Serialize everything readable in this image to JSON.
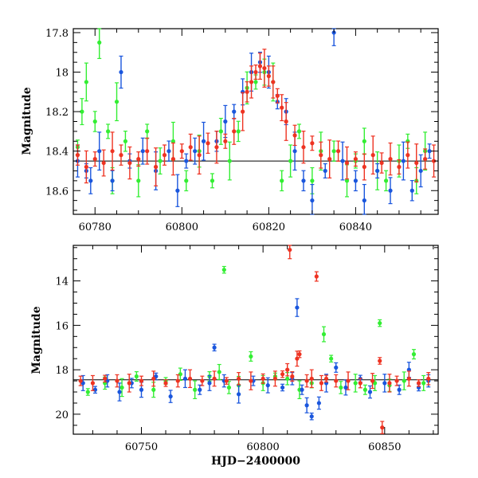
{
  "chart_data": [
    {
      "type": "scatter",
      "title": "",
      "xlabel": "",
      "ylabel": "Magnitude",
      "xlim": [
        60775,
        60859
      ],
      "ylim": [
        18.72,
        17.78
      ],
      "y_inverted": true,
      "grid": false,
      "xticks": [
        60780,
        60800,
        60820,
        60840
      ],
      "yticks": [
        17.8,
        18,
        18.2,
        18.4,
        18.6
      ],
      "ytick_labels": [
        "17.8",
        "18",
        "18.2",
        "18.4",
        "18.6"
      ],
      "reference_line_y": 18.45,
      "series": [
        {
          "color": "#33ee33",
          "values": [
            [
              60776,
              18.38
            ],
            [
              60777,
              18.2
            ],
            [
              60778,
              18.05
            ],
            [
              60780,
              18.25
            ],
            [
              60781,
              17.85
            ],
            [
              60783,
              18.3
            ],
            [
              60784,
              18.55
            ],
            [
              60785,
              18.15
            ],
            [
              60787,
              18.35
            ],
            [
              60790,
              18.55
            ],
            [
              60792,
              18.3
            ],
            [
              60795,
              18.45
            ],
            [
              60798,
              18.35
            ],
            [
              60801,
              18.55
            ],
            [
              60804,
              18.4
            ],
            [
              60807,
              18.55
            ],
            [
              60809,
              18.3
            ],
            [
              60811,
              18.45
            ],
            [
              60813,
              18.3
            ],
            [
              60815,
              18.08
            ],
            [
              60817,
              18.05
            ],
            [
              60819,
              18.0
            ],
            [
              60821,
              18.05
            ],
            [
              60823,
              18.55
            ],
            [
              60825,
              18.45
            ],
            [
              60827,
              18.3
            ],
            [
              60830,
              18.55
            ],
            [
              60832,
              18.4
            ],
            [
              60835,
              18.4
            ],
            [
              60838,
              18.55
            ],
            [
              60840,
              18.45
            ],
            [
              60842,
              18.35
            ],
            [
              60845,
              18.5
            ],
            [
              60847,
              18.55
            ],
            [
              60850,
              18.45
            ],
            [
              60852,
              18.35
            ],
            [
              60854,
              18.55
            ],
            [
              60856,
              18.4
            ]
          ]
        },
        {
          "color": "#1a56dd",
          "values": [
            [
              60776,
              18.45
            ],
            [
              60778,
              18.5
            ],
            [
              60779,
              18.55
            ],
            [
              60781,
              18.4
            ],
            [
              60784,
              18.55
            ],
            [
              60786,
              18.0
            ],
            [
              60788,
              18.45
            ],
            [
              60791,
              18.4
            ],
            [
              60794,
              18.5
            ],
            [
              60797,
              18.4
            ],
            [
              60799,
              18.6
            ],
            [
              60801,
              18.45
            ],
            [
              60803,
              18.4
            ],
            [
              60805,
              18.35
            ],
            [
              60808,
              18.35
            ],
            [
              60810,
              18.25
            ],
            [
              60812,
              18.2
            ],
            [
              60814,
              18.1
            ],
            [
              60816,
              18.0
            ],
            [
              60818,
              17.95
            ],
            [
              60820,
              18.0
            ],
            [
              60822,
              18.15
            ],
            [
              60824,
              18.2
            ],
            [
              60826,
              18.4
            ],
            [
              60828,
              18.55
            ],
            [
              60830,
              18.65
            ],
            [
              60833,
              18.5
            ],
            [
              60835,
              17.8
            ],
            [
              60837,
              18.45
            ],
            [
              60840,
              18.55
            ],
            [
              60842,
              18.65
            ],
            [
              60845,
              18.5
            ],
            [
              60848,
              18.6
            ],
            [
              60851,
              18.45
            ],
            [
              60853,
              18.6
            ],
            [
              60855,
              18.5
            ],
            [
              60857,
              18.4
            ]
          ]
        },
        {
          "color": "#ee3322",
          "values": [
            [
              60776,
              18.42
            ],
            [
              60778,
              18.48
            ],
            [
              60780,
              18.44
            ],
            [
              60782,
              18.46
            ],
            [
              60784,
              18.4
            ],
            [
              60786,
              18.42
            ],
            [
              60788,
              18.46
            ],
            [
              60790,
              18.44
            ],
            [
              60792,
              18.4
            ],
            [
              60794,
              18.48
            ],
            [
              60796,
              18.42
            ],
            [
              60798,
              18.44
            ],
            [
              60800,
              18.4
            ],
            [
              60802,
              18.38
            ],
            [
              60804,
              18.42
            ],
            [
              60806,
              18.36
            ],
            [
              60808,
              18.38
            ],
            [
              60810,
              18.35
            ],
            [
              60812,
              18.3
            ],
            [
              60814,
              18.2
            ],
            [
              60815,
              18.1
            ],
            [
              60816,
              18.05
            ],
            [
              60817,
              18.0
            ],
            [
              60818,
              17.97
            ],
            [
              60819,
              17.98
            ],
            [
              60820,
              18.02
            ],
            [
              60821,
              18.05
            ],
            [
              60822,
              18.12
            ],
            [
              60823,
              18.18
            ],
            [
              60824,
              18.25
            ],
            [
              60826,
              18.32
            ],
            [
              60828,
              18.38
            ],
            [
              60830,
              18.36
            ],
            [
              60832,
              18.42
            ],
            [
              60834,
              18.44
            ],
            [
              60836,
              18.4
            ],
            [
              60838,
              18.46
            ],
            [
              60840,
              18.44
            ],
            [
              60842,
              18.48
            ],
            [
              60844,
              18.42
            ],
            [
              60846,
              18.46
            ],
            [
              60848,
              18.44
            ],
            [
              60850,
              18.48
            ],
            [
              60852,
              18.42
            ],
            [
              60854,
              18.46
            ],
            [
              60856,
              18.44
            ],
            [
              60858,
              18.45
            ]
          ]
        }
      ]
    },
    {
      "type": "scatter",
      "title": "",
      "xlabel": "HJD−2400000",
      "ylabel": "Magnitude",
      "xlim": [
        60722,
        60872
      ],
      "ylim": [
        20.9,
        12.4
      ],
      "y_inverted": true,
      "grid": false,
      "xticks": [
        60750,
        60800,
        60850
      ],
      "yticks": [
        14,
        16,
        18,
        20
      ],
      "ytick_labels": [
        "14",
        "16",
        "18",
        "20"
      ],
      "reference_line_y": 18.45,
      "series": [
        {
          "color": "#33ee33",
          "values": [
            [
              60728,
              19.0
            ],
            [
              60735,
              18.6
            ],
            [
              60742,
              18.8
            ],
            [
              60748,
              18.3
            ],
            [
              60755,
              18.9
            ],
            [
              60760,
              18.5
            ],
            [
              60766,
              18.2
            ],
            [
              60772,
              18.9
            ],
            [
              60778,
              18.3
            ],
            [
              60782,
              18.1
            ],
            [
              60784,
              13.5
            ],
            [
              60786,
              18.8
            ],
            [
              60790,
              18.7
            ],
            [
              60795,
              17.4
            ],
            [
              60800,
              18.6
            ],
            [
              60805,
              18.3
            ],
            [
              60810,
              18.4
            ],
            [
              60815,
              18.9
            ],
            [
              60820,
              18.6
            ],
            [
              60825,
              16.4
            ],
            [
              60828,
              17.5
            ],
            [
              60832,
              18.8
            ],
            [
              60838,
              18.6
            ],
            [
              60842,
              18.9
            ],
            [
              60846,
              18.6
            ],
            [
              60848,
              15.9
            ],
            [
              60852,
              18.7
            ],
            [
              60858,
              18.5
            ],
            [
              60862,
              17.3
            ],
            [
              60866,
              18.6
            ]
          ]
        },
        {
          "color": "#1a56dd",
          "values": [
            [
              60726,
              18.6
            ],
            [
              60731,
              18.9
            ],
            [
              60736,
              18.5
            ],
            [
              60741,
              19.0
            ],
            [
              60746,
              18.6
            ],
            [
              60750,
              18.9
            ],
            [
              60756,
              18.3
            ],
            [
              60762,
              19.2
            ],
            [
              60768,
              18.4
            ],
            [
              60774,
              18.9
            ],
            [
              60778,
              18.6
            ],
            [
              60780,
              17.0
            ],
            [
              60784,
              18.5
            ],
            [
              60790,
              19.1
            ],
            [
              60796,
              18.5
            ],
            [
              60802,
              18.7
            ],
            [
              60808,
              18.8
            ],
            [
              60812,
              18.4
            ],
            [
              60814,
              15.2
            ],
            [
              60816,
              18.9
            ],
            [
              60818,
              19.6
            ],
            [
              60820,
              20.1
            ],
            [
              60823,
              19.5
            ],
            [
              60826,
              18.6
            ],
            [
              60830,
              17.9
            ],
            [
              60834,
              18.8
            ],
            [
              60840,
              18.4
            ],
            [
              60844,
              19.0
            ],
            [
              60850,
              18.6
            ],
            [
              60856,
              18.9
            ],
            [
              60860,
              18.0
            ],
            [
              60864,
              18.8
            ],
            [
              60868,
              18.5
            ]
          ]
        },
        {
          "color": "#ee3322",
          "values": [
            [
              60725,
              18.5
            ],
            [
              60730,
              18.6
            ],
            [
              60735,
              18.4
            ],
            [
              60740,
              18.5
            ],
            [
              60745,
              18.6
            ],
            [
              60750,
              18.5
            ],
            [
              60755,
              18.4
            ],
            [
              60760,
              18.6
            ],
            [
              60765,
              18.5
            ],
            [
              60770,
              18.4
            ],
            [
              60775,
              18.5
            ],
            [
              60780,
              18.4
            ],
            [
              60785,
              18.5
            ],
            [
              60790,
              18.4
            ],
            [
              60795,
              18.5
            ],
            [
              60800,
              18.4
            ],
            [
              60805,
              18.4
            ],
            [
              60808,
              18.2
            ],
            [
              60810,
              18.0
            ],
            [
              60811,
              12.6
            ],
            [
              60812,
              18.3
            ],
            [
              60814,
              17.5
            ],
            [
              60815,
              17.3
            ],
            [
              60818,
              18.5
            ],
            [
              60820,
              18.4
            ],
            [
              60822,
              13.8
            ],
            [
              60824,
              18.6
            ],
            [
              60826,
              18.4
            ],
            [
              60830,
              18.5
            ],
            [
              60835,
              18.5
            ],
            [
              60840,
              18.6
            ],
            [
              60845,
              18.5
            ],
            [
              60848,
              17.6
            ],
            [
              60849,
              20.6
            ],
            [
              60852,
              18.6
            ],
            [
              60855,
              18.5
            ],
            [
              60860,
              18.4
            ],
            [
              60864,
              18.6
            ],
            [
              60868,
              18.4
            ]
          ]
        }
      ]
    }
  ]
}
